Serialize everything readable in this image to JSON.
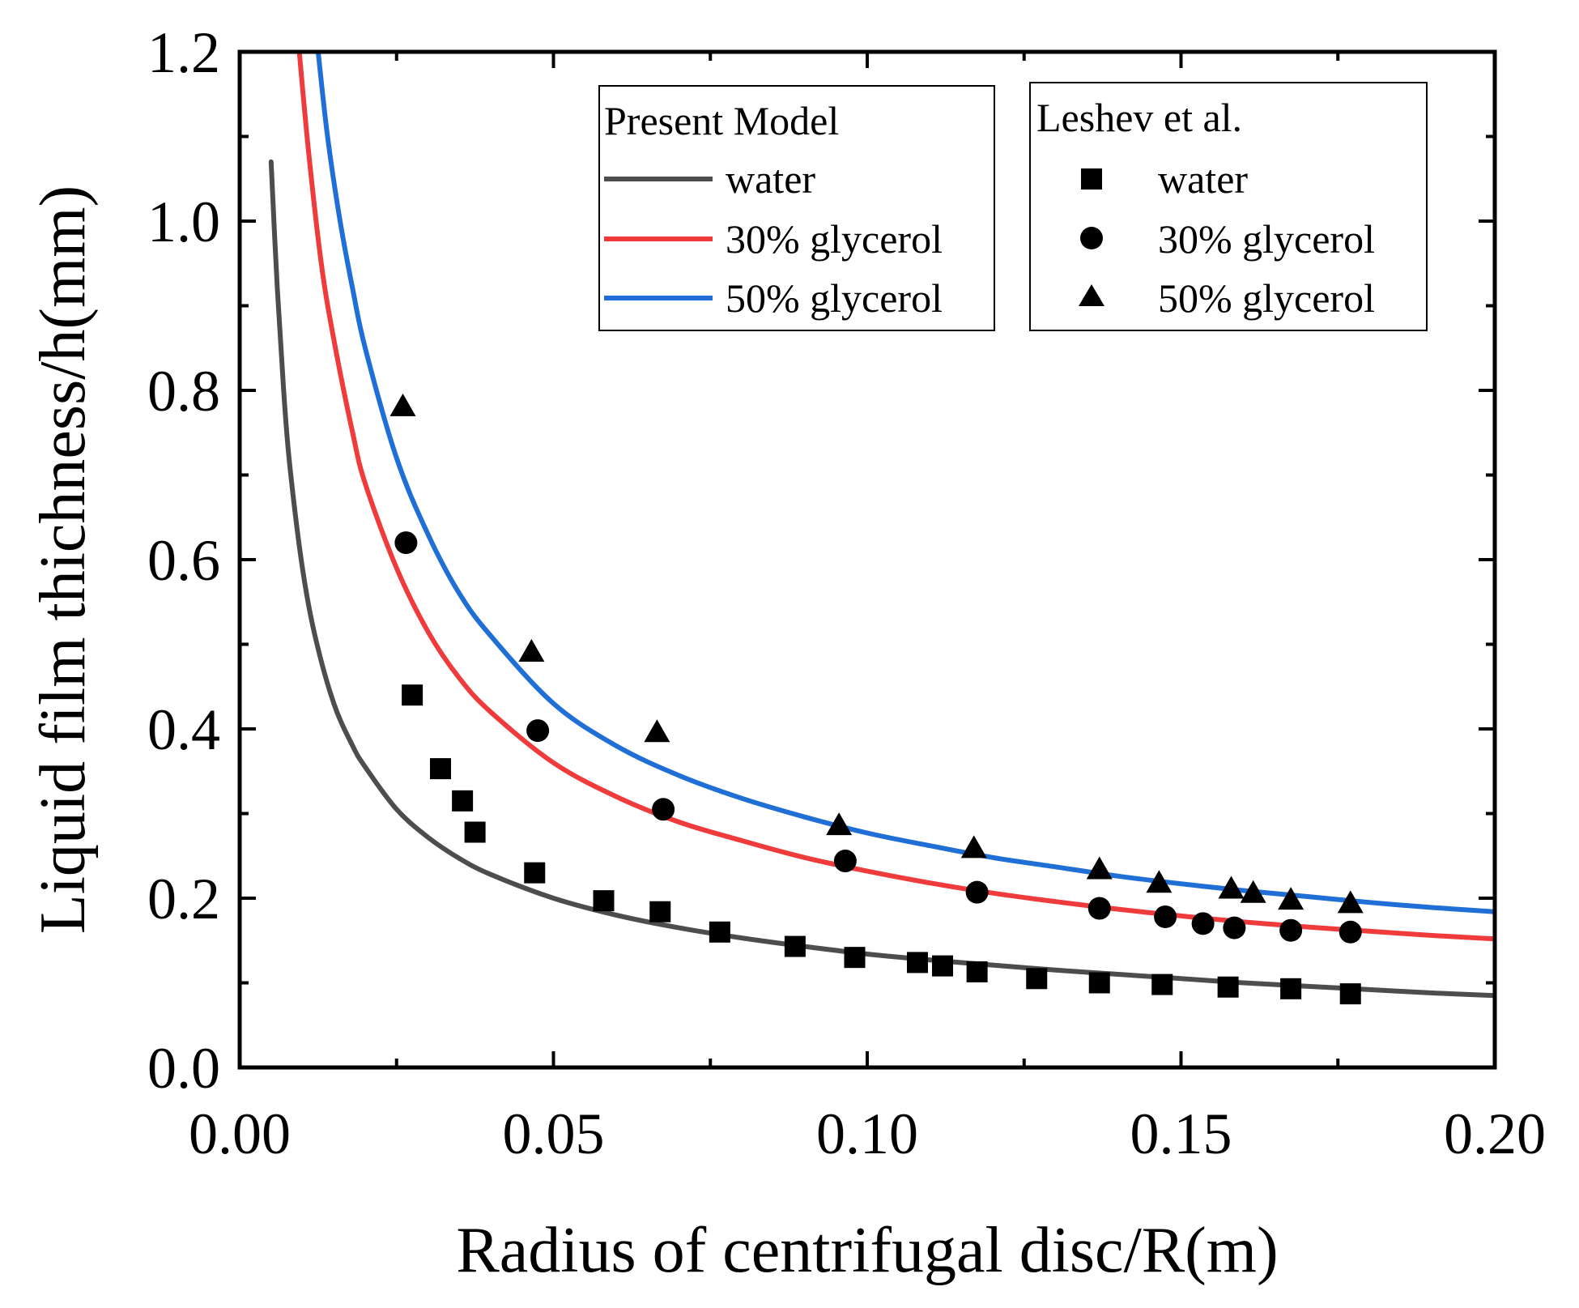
{
  "chart_data": {
    "type": "line",
    "title": "",
    "xlabel": "Radius of centrifugal disc/R(m)",
    "ylabel": "Liquid film thichness/h(mm)",
    "xlim": [
      0.0,
      0.2
    ],
    "ylim": [
      0.0,
      1.2
    ],
    "xticks": [
      0.0,
      0.05,
      0.1,
      0.15,
      0.2
    ],
    "xtick_labels": [
      "0.00",
      "0.05",
      "0.10",
      "0.15",
      "0.20"
    ],
    "yticks": [
      0.0,
      0.2,
      0.4,
      0.6,
      0.8,
      1.0,
      1.2
    ],
    "ytick_labels": [
      "0.0",
      "0.2",
      "0.4",
      "0.6",
      "0.8",
      "1.0",
      "1.2"
    ],
    "grid": false,
    "legends": [
      {
        "title": "Present Model",
        "placement": "top-center",
        "entries": [
          {
            "label": "water",
            "color": "#4d4d4d",
            "kind": "line"
          },
          {
            "label": "30% glycerol",
            "color": "#ef3b3b",
            "kind": "line"
          },
          {
            "label": "50% glycerol",
            "color": "#1f6fd6",
            "kind": "line"
          }
        ]
      },
      {
        "title": "Leshev et al.",
        "placement": "top-right",
        "entries": [
          {
            "label": "water",
            "color": "#000000",
            "kind": "square"
          },
          {
            "label": "30% glycerol",
            "color": "#000000",
            "kind": "circle"
          },
          {
            "label": "50% glycerol",
            "color": "#000000",
            "kind": "triangle"
          }
        ]
      }
    ],
    "model_series": [
      {
        "name": "water",
        "color": "#4d4d4d",
        "x": [
          0.005,
          0.006,
          0.007,
          0.008,
          0.01,
          0.012,
          0.015,
          0.018,
          0.02,
          0.025,
          0.03,
          0.035,
          0.04,
          0.05,
          0.06,
          0.07,
          0.08,
          0.09,
          0.1,
          0.11,
          0.12,
          0.13,
          0.14,
          0.15,
          0.16,
          0.17,
          0.18,
          0.19,
          0.2
        ],
        "y": [
          1.07,
          0.92,
          0.8,
          0.71,
          0.59,
          0.51,
          0.43,
          0.38,
          0.355,
          0.305,
          0.272,
          0.247,
          0.228,
          0.2,
          0.18,
          0.165,
          0.153,
          0.143,
          0.134,
          0.127,
          0.121,
          0.115,
          0.11,
          0.105,
          0.1,
          0.096,
          0.092,
          0.088,
          0.085
        ]
      },
      {
        "name": "30% glycerol",
        "color": "#ef3b3b",
        "x": [
          0.0095,
          0.011,
          0.013,
          0.015,
          0.018,
          0.02,
          0.025,
          0.03,
          0.035,
          0.04,
          0.05,
          0.06,
          0.07,
          0.08,
          0.09,
          0.1,
          0.11,
          0.12,
          0.13,
          0.14,
          0.15,
          0.16,
          0.17,
          0.18,
          0.19,
          0.2
        ],
        "y": [
          1.2,
          1.08,
          0.95,
          0.86,
          0.75,
          0.69,
          0.59,
          0.515,
          0.46,
          0.42,
          0.36,
          0.32,
          0.29,
          0.268,
          0.248,
          0.232,
          0.218,
          0.206,
          0.196,
          0.187,
          0.179,
          0.172,
          0.166,
          0.161,
          0.156,
          0.152
        ]
      },
      {
        "name": "50% glycerol",
        "color": "#1f6fd6",
        "x": [
          0.0125,
          0.014,
          0.016,
          0.018,
          0.02,
          0.025,
          0.03,
          0.035,
          0.04,
          0.05,
          0.06,
          0.07,
          0.08,
          0.09,
          0.1,
          0.11,
          0.12,
          0.13,
          0.14,
          0.15,
          0.16,
          0.17,
          0.18,
          0.19,
          0.2
        ],
        "y": [
          1.2,
          1.1,
          1.0,
          0.92,
          0.85,
          0.72,
          0.63,
          0.56,
          0.51,
          0.43,
          0.38,
          0.345,
          0.318,
          0.296,
          0.277,
          0.262,
          0.248,
          0.237,
          0.226,
          0.217,
          0.209,
          0.202,
          0.195,
          0.189,
          0.184
        ]
      }
    ],
    "experimental_series": [
      {
        "name": "water",
        "marker": "square",
        "x": [
          0.0275,
          0.032,
          0.0355,
          0.0375,
          0.047,
          0.058,
          0.067,
          0.0765,
          0.0885,
          0.098,
          0.108,
          0.112,
          0.1175,
          0.127,
          0.137,
          0.147,
          0.1575,
          0.1675,
          0.177
        ],
        "y": [
          0.44,
          0.353,
          0.315,
          0.278,
          0.23,
          0.197,
          0.184,
          0.16,
          0.143,
          0.13,
          0.124,
          0.12,
          0.113,
          0.105,
          0.1,
          0.098,
          0.095,
          0.093,
          0.087
        ]
      },
      {
        "name": "30% glycerol",
        "marker": "circle",
        "x": [
          0.0265,
          0.0475,
          0.0675,
          0.0965,
          0.1175,
          0.137,
          0.1475,
          0.1535,
          0.1585,
          0.1675,
          0.177
        ],
        "y": [
          0.62,
          0.398,
          0.305,
          0.244,
          0.207,
          0.188,
          0.178,
          0.17,
          0.165,
          0.162,
          0.16
        ]
      },
      {
        "name": "50% glycerol",
        "marker": "triangle",
        "x": [
          0.026,
          0.0465,
          0.0665,
          0.0955,
          0.117,
          0.137,
          0.1465,
          0.158,
          0.1615,
          0.1675,
          0.177
        ],
        "y": [
          0.78,
          0.49,
          0.395,
          0.285,
          0.258,
          0.233,
          0.217,
          0.21,
          0.205,
          0.197,
          0.193
        ]
      }
    ]
  }
}
